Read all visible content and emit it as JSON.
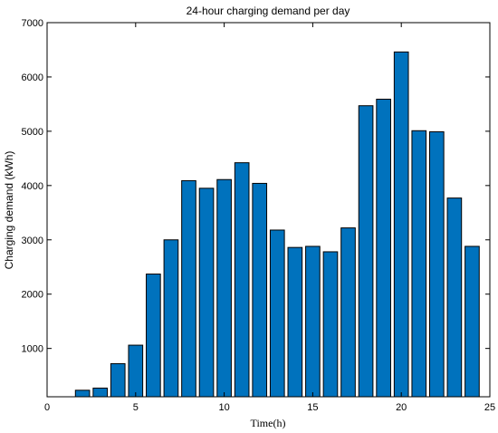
{
  "chart_data": {
    "type": "bar",
    "title": "24-hour charging demand per day",
    "xlabel": "Time(h)",
    "ylabel": "Charging demand (kWh)",
    "x": [
      2,
      3,
      4,
      5,
      6,
      7,
      8,
      9,
      10,
      11,
      12,
      13,
      14,
      15,
      16,
      17,
      18,
      19,
      20,
      21,
      22,
      23,
      24
    ],
    "values": [
      230,
      270,
      720,
      1060,
      2370,
      3000,
      4090,
      3950,
      4110,
      4420,
      4040,
      3180,
      2860,
      2880,
      2780,
      3220,
      5470,
      5590,
      6460,
      5010,
      4990,
      3770,
      2880
    ],
    "xlim": [
      0,
      25
    ],
    "ylim": [
      110,
      7000
    ],
    "xticks": [
      0,
      5,
      10,
      15,
      20,
      25
    ],
    "yticks": [
      1000,
      2000,
      3000,
      4000,
      5000,
      6000,
      7000
    ],
    "bar_color": "#0072BD",
    "bar_edge_color": "#000000",
    "grid": false
  }
}
